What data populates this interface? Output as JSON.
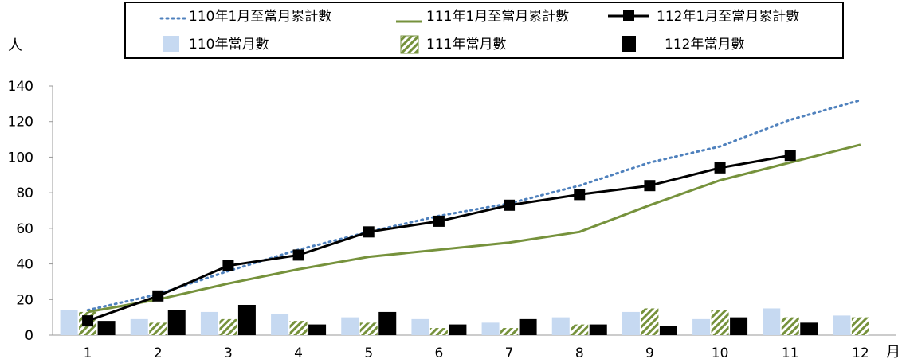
{
  "chart_data": {
    "type": "bar",
    "title": "",
    "xlabel": "月",
    "ylabel": "人",
    "ylim": [
      0,
      140
    ],
    "yticks": [
      0,
      20,
      40,
      60,
      80,
      100,
      120,
      140
    ],
    "categories": [
      "1",
      "2",
      "3",
      "4",
      "5",
      "6",
      "7",
      "8",
      "9",
      "10",
      "11",
      "12"
    ],
    "legend_position": "top-center",
    "grid": false,
    "bar_series": [
      {
        "name": "110年當月數",
        "color": "#c6d9f1",
        "values": [
          14,
          9,
          13,
          12,
          10,
          9,
          7,
          10,
          13,
          9,
          15,
          11
        ]
      },
      {
        "name": "111年當月數",
        "color": "#76923c",
        "pattern": "hatch",
        "values": [
          13,
          7,
          9,
          8,
          7,
          4,
          4,
          6,
          15,
          14,
          10,
          10
        ]
      },
      {
        "name": "112年當月數",
        "color": "#000000",
        "values": [
          8,
          14,
          17,
          6,
          13,
          6,
          9,
          6,
          5,
          10,
          7,
          null
        ]
      }
    ],
    "line_series": [
      {
        "name": "110年1月至當月累計數",
        "color": "#4f81bd",
        "style": "dotted",
        "values": [
          14,
          23,
          36,
          48,
          58,
          67,
          74,
          84,
          97,
          106,
          121,
          132
        ]
      },
      {
        "name": "111年1月至當月累計數",
        "color": "#76923c",
        "style": "solid",
        "values": [
          13,
          20,
          29,
          37,
          44,
          48,
          52,
          58,
          73,
          87,
          97,
          107
        ]
      },
      {
        "name": "112年1月至當月累計數",
        "color": "#000000",
        "style": "solid-square-markers",
        "values": [
          8,
          22,
          39,
          45,
          58,
          64,
          73,
          79,
          84,
          94,
          101,
          null
        ]
      }
    ]
  }
}
